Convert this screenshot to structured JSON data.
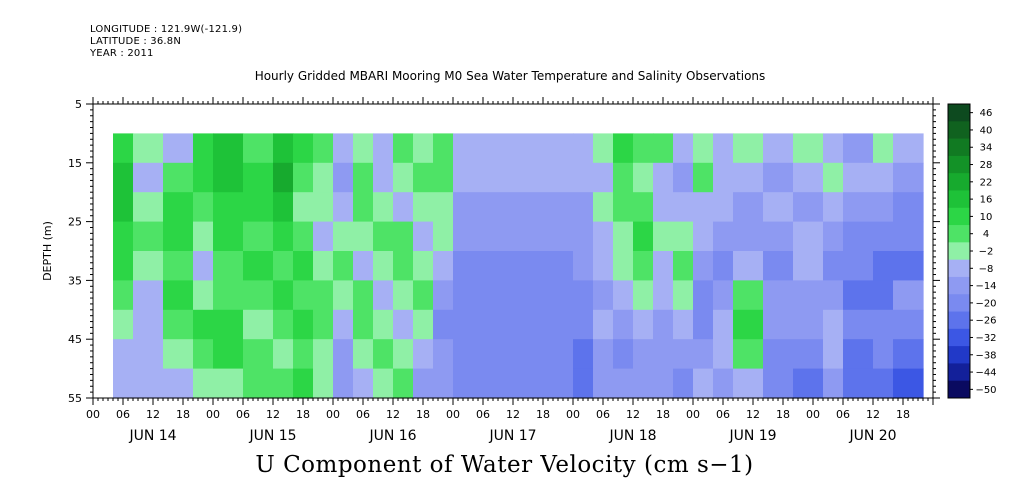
{
  "header": {
    "longitude": "LONGITUDE : 121.9W(-121.9)",
    "latitude": "LATITUDE : 36.8N",
    "year": "YEAR : 2011"
  },
  "chart_data": {
    "type": "heatmap",
    "title": "Hourly Gridded MBARI Mooring M0 Sea Water Temperature and Salinity Observations",
    "subtitle": "U Component of Water Velocity (cm s−1)",
    "ylabel": "DEPTH (m)",
    "y_ticks": [
      "5",
      "15",
      "25",
      "35",
      "45",
      "55"
    ],
    "ylim": [
      5,
      55
    ],
    "y_reversed": true,
    "x_hour_labels": [
      "00",
      "06",
      "12",
      "18",
      "00",
      "06",
      "12",
      "18",
      "00",
      "06",
      "12",
      "18",
      "00",
      "06",
      "12",
      "18",
      "00",
      "06",
      "12",
      "18",
      "00",
      "06",
      "12",
      "18",
      "00",
      "06",
      "12",
      "18"
    ],
    "x_day_labels": [
      "JUN 14",
      "JUN 15",
      "JUN 16",
      "JUN 17",
      "JUN 18",
      "JUN 19",
      "JUN 20"
    ],
    "x_range_hours": [
      0,
      168
    ],
    "data_depth_range": [
      10,
      55
    ],
    "data_time_range_hours": [
      4,
      166
    ],
    "colorbar_levels": [
      "46",
      "40",
      "34",
      "28",
      "22",
      "16",
      "10",
      "4",
      "−2",
      "−8",
      "−14",
      "−20",
      "−26",
      "−32",
      "−38",
      "−44",
      "−50"
    ],
    "colorbar_colors": [
      "#0d4a1f",
      "#10621f",
      "#117a22",
      "#139227",
      "#17aa2e",
      "#1ec238",
      "#2cd646",
      "#4ee366",
      "#8ff0a6",
      "#a6b0f4",
      "#8e9af2",
      "#7a8af0",
      "#5d73ec",
      "#3c57e4",
      "#2139c8",
      "#13209a",
      "#0a0a60"
    ],
    "columns": [
      {
        "t0": 4,
        "t1": 8,
        "v": [
          10,
          16,
          16,
          10,
          10,
          4,
          -2,
          -8,
          -8
        ]
      },
      {
        "t0": 8,
        "t1": 14,
        "v": [
          -2,
          -8,
          -2,
          4,
          -2,
          -8,
          -8,
          -8,
          -8
        ]
      },
      {
        "t0": 14,
        "t1": 20,
        "v": [
          -8,
          4,
          10,
          10,
          4,
          10,
          4,
          -2,
          -8
        ]
      },
      {
        "t0": 20,
        "t1": 24,
        "v": [
          10,
          10,
          4,
          -2,
          -8,
          -2,
          10,
          4,
          -2
        ]
      },
      {
        "t0": 24,
        "t1": 30,
        "v": [
          16,
          16,
          10,
          10,
          4,
          4,
          10,
          10,
          -2
        ]
      },
      {
        "t0": 30,
        "t1": 36,
        "v": [
          4,
          10,
          10,
          4,
          10,
          4,
          -2,
          4,
          4
        ]
      },
      {
        "t0": 36,
        "t1": 40,
        "v": [
          16,
          22,
          16,
          10,
          4,
          10,
          4,
          -2,
          4
        ]
      },
      {
        "t0": 40,
        "t1": 44,
        "v": [
          10,
          4,
          -2,
          4,
          10,
          4,
          10,
          4,
          10
        ]
      },
      {
        "t0": 44,
        "t1": 48,
        "v": [
          4,
          -2,
          -2,
          -8,
          -2,
          4,
          4,
          -2,
          -2
        ]
      },
      {
        "t0": 48,
        "t1": 52,
        "v": [
          -8,
          -14,
          -8,
          -2,
          4,
          -2,
          -8,
          -14,
          -14
        ]
      },
      {
        "t0": 52,
        "t1": 56,
        "v": [
          -2,
          4,
          4,
          -2,
          -8,
          4,
          4,
          -2,
          -8
        ]
      },
      {
        "t0": 56,
        "t1": 60,
        "v": [
          -8,
          -8,
          -2,
          4,
          -2,
          -8,
          -2,
          4,
          -2
        ]
      },
      {
        "t0": 60,
        "t1": 64,
        "v": [
          4,
          -2,
          -8,
          4,
          4,
          -2,
          -8,
          -2,
          4
        ]
      },
      {
        "t0": 64,
        "t1": 68,
        "v": [
          -2,
          4,
          -2,
          -8,
          -2,
          4,
          -2,
          -8,
          -14
        ]
      },
      {
        "t0": 68,
        "t1": 72,
        "v": [
          4,
          4,
          -2,
          -2,
          -8,
          -14,
          -20,
          -14,
          -14
        ]
      },
      {
        "t0": 72,
        "t1": 96,
        "v": [
          -8,
          -8,
          -14,
          -14,
          -20,
          -20,
          -20,
          -20,
          -20
        ]
      },
      {
        "t0": 96,
        "t1": 100,
        "v": [
          -8,
          -8,
          -14,
          -14,
          -14,
          -20,
          -20,
          -26,
          -26
        ]
      },
      {
        "t0": 100,
        "t1": 104,
        "v": [
          -2,
          -8,
          -2,
          -8,
          -8,
          -14,
          -8,
          -14,
          -14
        ]
      },
      {
        "t0": 104,
        "t1": 108,
        "v": [
          10,
          4,
          4,
          -2,
          -2,
          -8,
          -14,
          -20,
          -14
        ]
      },
      {
        "t0": 108,
        "t1": 112,
        "v": [
          4,
          -2,
          4,
          10,
          4,
          -2,
          -8,
          -14,
          -14
        ]
      },
      {
        "t0": 112,
        "t1": 116,
        "v": [
          4,
          -8,
          -8,
          -2,
          -8,
          -8,
          -14,
          -14,
          -14
        ]
      },
      {
        "t0": 116,
        "t1": 120,
        "v": [
          -8,
          -14,
          -8,
          -2,
          4,
          -2,
          -8,
          -14,
          -20
        ]
      },
      {
        "t0": 120,
        "t1": 124,
        "v": [
          -2,
          4,
          -8,
          -8,
          -14,
          -20,
          -20,
          -14,
          -8
        ]
      },
      {
        "t0": 124,
        "t1": 128,
        "v": [
          -8,
          -8,
          -8,
          -14,
          -20,
          -14,
          -8,
          -8,
          -14
        ]
      },
      {
        "t0": 128,
        "t1": 134,
        "v": [
          -2,
          -8,
          -14,
          -14,
          -8,
          4,
          10,
          4,
          -8
        ]
      },
      {
        "t0": 134,
        "t1": 140,
        "v": [
          -8,
          -14,
          -8,
          -14,
          -20,
          -14,
          -14,
          -20,
          -20
        ]
      },
      {
        "t0": 140,
        "t1": 146,
        "v": [
          -2,
          -8,
          -14,
          -8,
          -8,
          -14,
          -14,
          -20,
          -26
        ]
      },
      {
        "t0": 146,
        "t1": 150,
        "v": [
          -8,
          -2,
          -8,
          -14,
          -20,
          -14,
          -8,
          -8,
          -14
        ]
      },
      {
        "t0": 150,
        "t1": 156,
        "v": [
          -14,
          -8,
          -14,
          -20,
          -20,
          -26,
          -20,
          -26,
          -26
        ]
      },
      {
        "t0": 156,
        "t1": 160,
        "v": [
          -2,
          -8,
          -14,
          -20,
          -26,
          -26,
          -20,
          -20,
          -26
        ]
      },
      {
        "t0": 160,
        "t1": 166,
        "v": [
          -8,
          -14,
          -20,
          -20,
          -26,
          -14,
          -20,
          -26,
          -32
        ]
      }
    ]
  }
}
